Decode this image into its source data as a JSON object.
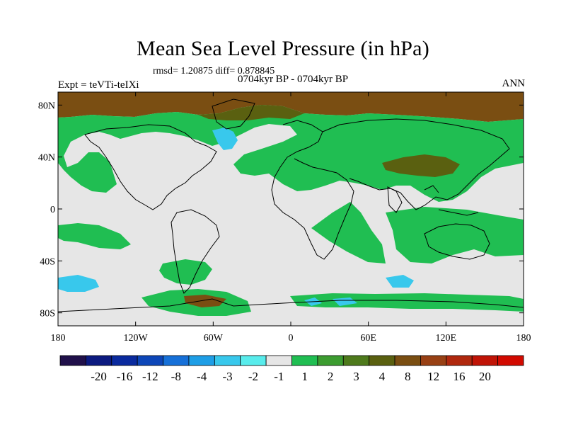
{
  "title": "Mean Sea Level Pressure (in hPa)",
  "stats_text": "rmsd= 1.20875 diff= 0.878845",
  "subtitle": "0704kyr BP - 0704kyr BP",
  "left_label": "Expt = teVTi-teIXi",
  "right_label": "ANN",
  "map": {
    "lon_ticks": [
      {
        "label": "180",
        "lon": -180
      },
      {
        "label": "120W",
        "lon": -120
      },
      {
        "label": "60W",
        "lon": -60
      },
      {
        "label": "0",
        "lon": 0
      },
      {
        "label": "60E",
        "lon": 60
      },
      {
        "label": "120E",
        "lon": 120
      },
      {
        "label": "180",
        "lon": 180
      }
    ],
    "lat_ticks": [
      {
        "label": "80N",
        "lat": 80
      },
      {
        "label": "40N",
        "lat": 40
      },
      {
        "label": "0",
        "lat": 0
      },
      {
        "label": "40S",
        "lat": -40
      },
      {
        "label": "80S",
        "lat": -80
      }
    ],
    "lon_range": [
      -180,
      180
    ],
    "lat_range": [
      -90,
      90
    ]
  },
  "colorbar": {
    "colors": [
      "#20104a",
      "#0c1a80",
      "#0a2a9e",
      "#0d46b8",
      "#1670d8",
      "#1e9ee6",
      "#38c8ec",
      "#58ecec",
      "#e6e6e6",
      "#20be52",
      "#3c9c30",
      "#4e7a1c",
      "#5a6010",
      "#7a4e12",
      "#984014",
      "#b0280e",
      "#c01406",
      "#d20a00"
    ],
    "labels": [
      "-20",
      "-16",
      "-12",
      "-8",
      "-4",
      "-3",
      "-2",
      "-1",
      "1",
      "2",
      "3",
      "4",
      "8",
      "12",
      "16",
      "20"
    ]
  },
  "field_colors": {
    "neutral": "#e6e6e6",
    "green": "#20be52",
    "olive": "#5a6010",
    "brown": "#7a4e12",
    "cyan": "#38c8ec"
  }
}
